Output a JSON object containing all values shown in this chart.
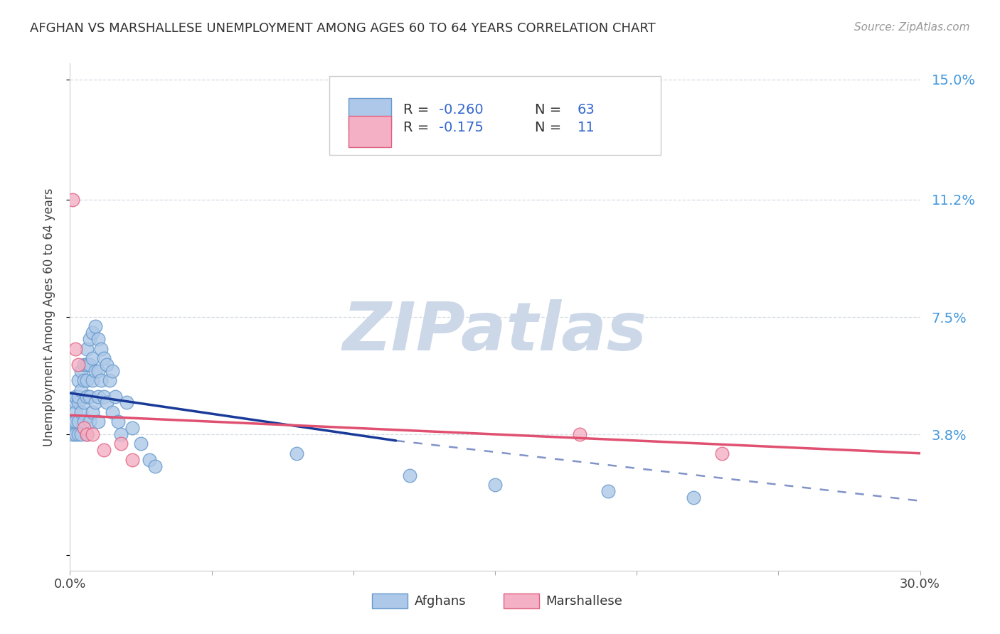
{
  "title": "AFGHAN VS MARSHALLESE UNEMPLOYMENT AMONG AGES 60 TO 64 YEARS CORRELATION CHART",
  "source": "Source: ZipAtlas.com",
  "ylabel": "Unemployment Among Ages 60 to 64 years",
  "xlim": [
    0.0,
    0.3
  ],
  "ylim": [
    -0.005,
    0.155
  ],
  "afghan_color": "#adc8e8",
  "afghan_edge": "#6699cc",
  "marshall_color": "#f4b0c4",
  "marshall_edge": "#e06080",
  "trend_afghan_color": "#1a3a99",
  "trend_marshall_color": "#e05070",
  "watermark_color": "#ccd8e8",
  "watermark_text": "ZIPatlas",
  "bg_color": "#ffffff",
  "grid_color": "#d4dce4",
  "right_ytick_color": "#4499dd",
  "legend_color": "#3366cc",
  "afghan_x": [
    0.001,
    0.001,
    0.001,
    0.002,
    0.002,
    0.002,
    0.002,
    0.002,
    0.003,
    0.003,
    0.003,
    0.003,
    0.003,
    0.004,
    0.004,
    0.004,
    0.004,
    0.005,
    0.005,
    0.005,
    0.005,
    0.006,
    0.006,
    0.006,
    0.006,
    0.006,
    0.007,
    0.007,
    0.007,
    0.007,
    0.008,
    0.008,
    0.008,
    0.008,
    0.009,
    0.009,
    0.009,
    0.01,
    0.01,
    0.01,
    0.01,
    0.011,
    0.011,
    0.012,
    0.012,
    0.013,
    0.013,
    0.014,
    0.015,
    0.015,
    0.016,
    0.017,
    0.018,
    0.02,
    0.022,
    0.025,
    0.028,
    0.03,
    0.08,
    0.12,
    0.15,
    0.19,
    0.22
  ],
  "afghan_y": [
    0.04,
    0.042,
    0.038,
    0.048,
    0.045,
    0.042,
    0.05,
    0.038,
    0.055,
    0.048,
    0.05,
    0.042,
    0.038,
    0.058,
    0.052,
    0.045,
    0.038,
    0.06,
    0.055,
    0.048,
    0.042,
    0.065,
    0.06,
    0.055,
    0.05,
    0.038,
    0.068,
    0.06,
    0.05,
    0.042,
    0.07,
    0.062,
    0.055,
    0.045,
    0.072,
    0.058,
    0.048,
    0.068,
    0.058,
    0.05,
    0.042,
    0.065,
    0.055,
    0.062,
    0.05,
    0.06,
    0.048,
    0.055,
    0.058,
    0.045,
    0.05,
    0.042,
    0.038,
    0.048,
    0.04,
    0.035,
    0.03,
    0.028,
    0.032,
    0.025,
    0.022,
    0.02,
    0.018
  ],
  "marshall_x": [
    0.001,
    0.002,
    0.003,
    0.005,
    0.006,
    0.008,
    0.012,
    0.018,
    0.022,
    0.18,
    0.23
  ],
  "marshall_y": [
    0.112,
    0.065,
    0.06,
    0.04,
    0.038,
    0.038,
    0.033,
    0.035,
    0.03,
    0.038,
    0.032
  ],
  "trend_afghan_x0": 0.0,
  "trend_afghan_x1": 0.115,
  "trend_afghan_x2": 0.3,
  "trend_afghan_y0": 0.051,
  "trend_afghan_y1": 0.036,
  "trend_afghan_y2": 0.017,
  "trend_marshall_x0": 0.0,
  "trend_marshall_x1": 0.3,
  "trend_marshall_y0": 0.044,
  "trend_marshall_y1": 0.032
}
